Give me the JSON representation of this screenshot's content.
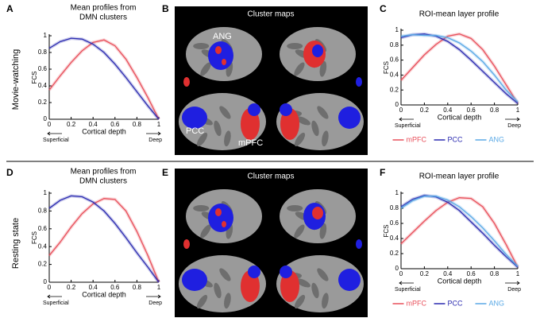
{
  "row_labels": [
    "Movie-watching",
    "Resting state"
  ],
  "panel_letters": [
    "A",
    "B",
    "C",
    "D",
    "E",
    "F"
  ],
  "brain_panels": [
    {
      "title": "Cluster maps",
      "labels": [
        "ANG",
        "PCC",
        "mPFC"
      ]
    },
    {
      "title": "Cluster maps"
    }
  ],
  "chart_data": [
    {
      "type": "line",
      "title": [
        "Mean profiles from",
        "DMN clusters"
      ],
      "xlabel": "Cortical depth",
      "x_left_label": "Superficial",
      "x_right_label": "Deep",
      "ylabel": "FCS",
      "x": [
        0,
        0.1,
        0.2,
        0.3,
        0.4,
        0.5,
        0.6,
        0.7,
        0.8,
        0.9,
        1
      ],
      "series": [
        {
          "color": "#e8505b",
          "values": [
            0.35,
            0.52,
            0.68,
            0.82,
            0.92,
            0.95,
            0.88,
            0.72,
            0.5,
            0.26,
            0.0
          ]
        },
        {
          "color": "#2b2bb0",
          "values": [
            0.85,
            0.93,
            0.97,
            0.96,
            0.9,
            0.8,
            0.66,
            0.5,
            0.33,
            0.16,
            0.0
          ]
        }
      ],
      "xlim": [
        0,
        1
      ],
      "ylim": [
        0,
        1
      ],
      "xticks": [
        0,
        0.2,
        0.4,
        0.6,
        0.8,
        1
      ],
      "yticks": [
        0,
        0.2,
        0.4,
        0.6,
        0.8,
        1
      ]
    },
    {
      "type": "line",
      "title": [
        "ROI-mean layer profile"
      ],
      "xlabel": "Cortical depth",
      "x_left_label": "Superficial",
      "x_right_label": "Deep",
      "ylabel": "FCS",
      "x": [
        0,
        0.1,
        0.2,
        0.3,
        0.4,
        0.5,
        0.6,
        0.7,
        0.8,
        0.9,
        1
      ],
      "series": [
        {
          "name": "mPFC",
          "color": "#e8505b",
          "values": [
            0.33,
            0.5,
            0.67,
            0.81,
            0.92,
            0.95,
            0.89,
            0.74,
            0.52,
            0.27,
            0.02
          ]
        },
        {
          "name": "PCC",
          "color": "#2b2bb0",
          "values": [
            0.9,
            0.94,
            0.95,
            0.92,
            0.85,
            0.74,
            0.6,
            0.45,
            0.3,
            0.15,
            0.02
          ]
        },
        {
          "name": "ANG",
          "color": "#5aa9e6",
          "values": [
            0.92,
            0.94,
            0.93,
            0.93,
            0.9,
            0.83,
            0.72,
            0.58,
            0.4,
            0.2,
            0.04
          ]
        }
      ],
      "xlim": [
        0,
        1
      ],
      "ylim": [
        0,
        1
      ],
      "xticks": [
        0,
        0.2,
        0.4,
        0.6,
        0.8,
        1
      ],
      "yticks": [
        0,
        0.2,
        0.4,
        0.6,
        0.8,
        1
      ]
    },
    {
      "type": "line",
      "title": [
        "Mean profiles from",
        "DMN clusters"
      ],
      "xlabel": "Cortical depth",
      "x_left_label": "Superficial",
      "x_right_label": "Deep",
      "ylabel": "FCS",
      "x": [
        0,
        0.1,
        0.2,
        0.3,
        0.4,
        0.5,
        0.6,
        0.7,
        0.8,
        0.9,
        1
      ],
      "series": [
        {
          "color": "#e8505b",
          "values": [
            0.3,
            0.45,
            0.62,
            0.77,
            0.88,
            0.94,
            0.93,
            0.8,
            0.57,
            0.3,
            0.0
          ]
        },
        {
          "color": "#2b2bb0",
          "values": [
            0.83,
            0.92,
            0.97,
            0.96,
            0.9,
            0.8,
            0.66,
            0.5,
            0.33,
            0.17,
            0.0
          ]
        }
      ],
      "xlim": [
        0,
        1
      ],
      "ylim": [
        0,
        1
      ],
      "xticks": [
        0,
        0.2,
        0.4,
        0.6,
        0.8,
        1
      ],
      "yticks": [
        0,
        0.2,
        0.4,
        0.6,
        0.8,
        1
      ]
    },
    {
      "type": "line",
      "title": [
        "ROI-mean layer profile"
      ],
      "xlabel": "Cortical depth",
      "x_left_label": "Superficial",
      "x_right_label": "Deep",
      "ylabel": "FCS",
      "x": [
        0,
        0.1,
        0.2,
        0.3,
        0.4,
        0.5,
        0.6,
        0.7,
        0.8,
        0.9,
        1
      ],
      "series": [
        {
          "name": "mPFC",
          "color": "#e8505b",
          "values": [
            0.33,
            0.48,
            0.63,
            0.77,
            0.88,
            0.94,
            0.93,
            0.82,
            0.6,
            0.32,
            0.02
          ]
        },
        {
          "name": "PCC",
          "color": "#2b2bb0",
          "values": [
            0.82,
            0.92,
            0.97,
            0.95,
            0.88,
            0.77,
            0.62,
            0.47,
            0.31,
            0.16,
            0.02
          ]
        },
        {
          "name": "ANG",
          "color": "#5aa9e6",
          "values": [
            0.8,
            0.9,
            0.96,
            0.96,
            0.91,
            0.82,
            0.69,
            0.54,
            0.37,
            0.19,
            0.03
          ]
        }
      ],
      "xlim": [
        0,
        1
      ],
      "ylim": [
        0,
        1
      ],
      "xticks": [
        0,
        0.2,
        0.4,
        0.6,
        0.8,
        1
      ],
      "yticks": [
        0,
        0.2,
        0.4,
        0.6,
        0.8,
        1
      ]
    }
  ]
}
